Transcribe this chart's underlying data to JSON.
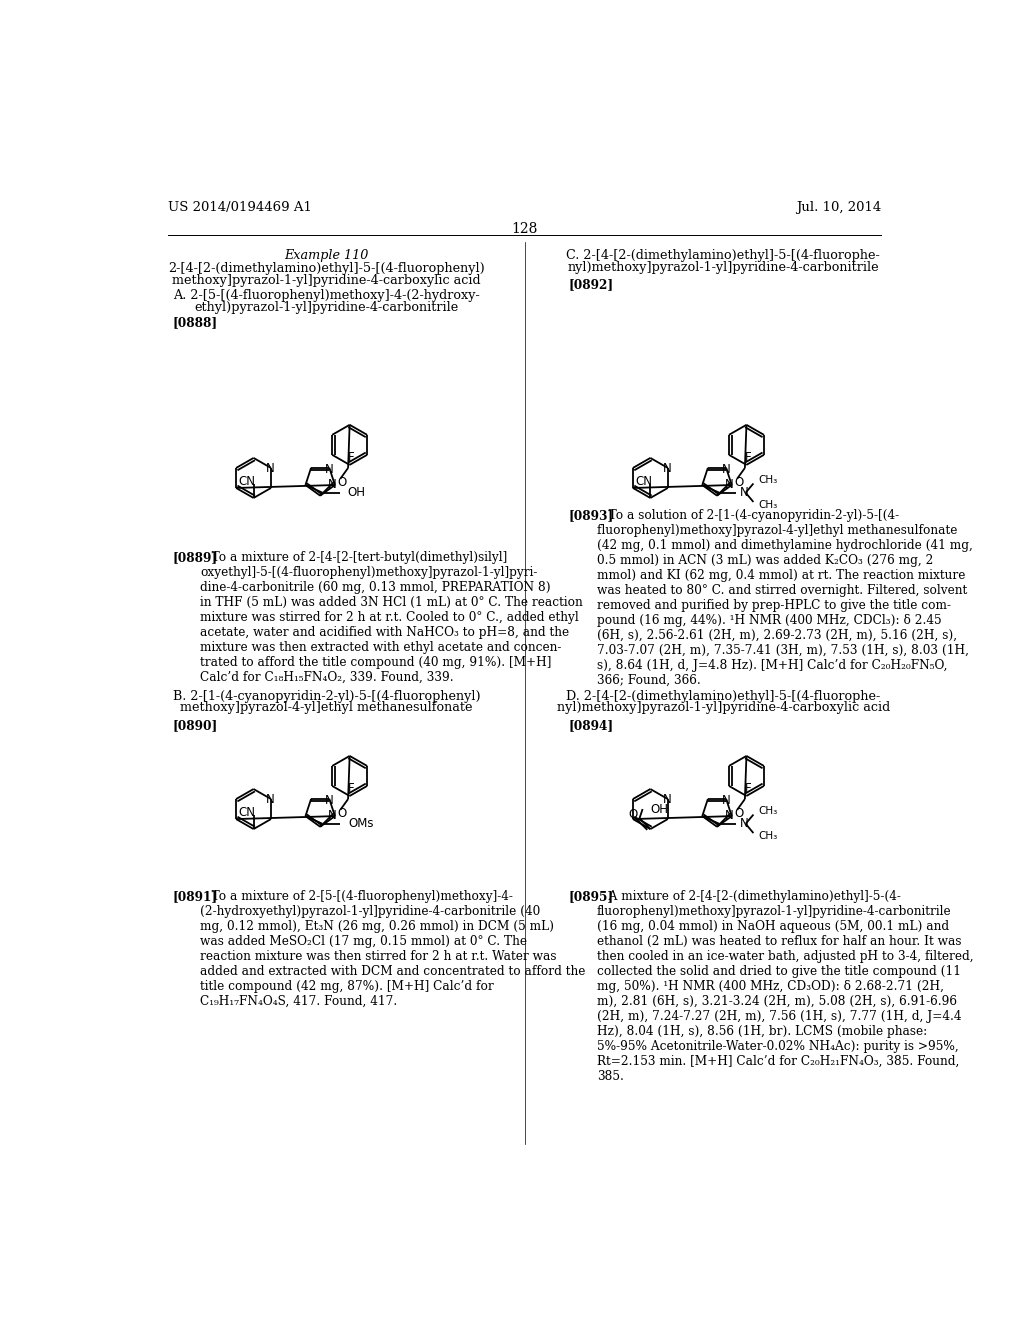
{
  "background_color": "#ffffff",
  "page_number": "128",
  "header_left": "US 2014/0194469 A1",
  "header_right": "Jul. 10, 2014",
  "example_title": "Example 110",
  "example_subtitle_line1": "2-[4-[2-(dimethylamino)ethyl]-5-[(4-fluorophenyl)",
  "example_subtitle_line2": "methoxy]pyrazol-1-yl]pyridine-4-carboxylic acid",
  "sec_a_line1": "A. 2-[5-[(4-fluorophenyl)methoxy]-4-(2-hydroxy-",
  "sec_a_line2": "ethyl)pyrazol-1-yl]pyridine-4-carbonitrile",
  "sec_b_line1": "B. 2-[1-(4-cyanopyridin-2-yl)-5-[(4-fluorophenyl)",
  "sec_b_line2": "methoxy]pyrazol-4-yl]ethyl methanesulfonate",
  "sec_c_line1": "C. 2-[4-[2-(dimethylamino)ethyl]-5-[(4-fluorophe-",
  "sec_c_line2": "nyl)methoxy]pyrazol-1-yl]pyridine-4-carbonitrile",
  "sec_d_line1": "D. 2-[4-[2-(dimethylamino)ethyl]-5-[(4-fluorophe-",
  "sec_d_line2": "nyl)methoxy]pyrazol-1-yl]pyridine-4-carboxylic acid",
  "id_0888": "[0888]",
  "id_0889": "[0889]",
  "id_0890": "[0890]",
  "id_0891": "[0891]",
  "id_0892": "[0892]",
  "id_0893": "[0893]",
  "id_0894": "[0894]",
  "id_0895": "[0895]",
  "para_0889_bold": "[0889]",
  "para_0889_text": "   To a mixture of 2-[4-[2-[tert-butyl(dimethyl)silyl]\noxyethyl]-5-[(4-fluorophenyl)methoxy]pyrazol-1-yl]pyri-\ndine-4-carbonitrile (60 mg, 0.13 mmol, PREPARATION 8)\nin THF (5 mL) was added 3N HCl (1 mL) at 0° C. The reaction\nmixture was stirred for 2 h at r.t. Cooled to 0° C., added ethyl\nacetate, water and acidified with NaHCO₃ to pH=8, and the\nmixture was then extracted with ethyl acetate and concen-\ntrated to afford the title compound (40 mg, 91%). [M+H]\nCalc’d for C₁₈H₁₅FN₄O₂, 339. Found, 339.",
  "para_0891_bold": "[0891]",
  "para_0891_text": "   To a mixture of 2-[5-[(4-fluorophenyl)methoxy]-4-\n(2-hydroxyethyl)pyrazol-1-yl]pyridine-4-carbonitrile (40\nmg, 0.12 mmol), Et₃N (26 mg, 0.26 mmol) in DCM (5 mL)\nwas added MeSO₂Cl (17 mg, 0.15 mmol) at 0° C. The\nreaction mixture was then stirred for 2 h at r.t. Water was\nadded and extracted with DCM and concentrated to afford the\ntitle compound (42 mg, 87%). [M+H] Calc’d for\nC₁₉H₁₇FN₄O₄S, 417. Found, 417.",
  "para_0893_bold": "[0893]",
  "para_0893_text": "   To a solution of 2-[1-(4-cyanopyridin-2-yl)-5-[(4-\nfluorophenyl)methoxy]pyrazol-4-yl]ethyl methanesulfonate\n(42 mg, 0.1 mmol) and dimethylamine hydrochloride (41 mg,\n0.5 mmol) in ACN (3 mL) was added K₂CO₃ (276 mg, 2\nmmol) and KI (62 mg, 0.4 mmol) at rt. The reaction mixture\nwas heated to 80° C. and stirred overnight. Filtered, solvent\nremoved and purified by prep-HPLC to give the title com-\npound (16 mg, 44%). ¹H NMR (400 MHz, CDCl₃): δ 2.45\n(6H, s), 2.56-2.61 (2H, m), 2.69-2.73 (2H, m), 5.16 (2H, s),\n7.03-7.07 (2H, m), 7.35-7.41 (3H, m), 7.53 (1H, s), 8.03 (1H,\ns), 8.64 (1H, d, J=4.8 Hz). [M+H] Calc’d for C₂₀H₂₀FN₅O,\n366; Found, 366.",
  "para_0895_bold": "[0895]",
  "para_0895_text": "   A mixture of 2-[4-[2-(dimethylamino)ethyl]-5-(4-\nfluorophenyl)methoxy]pyrazol-1-yl]pyridine-4-carbonitrile\n(16 mg, 0.04 mmol) in NaOH aqueous (5M, 00.1 mL) and\nethanol (2 mL) was heated to reflux for half an hour. It was\nthen cooled in an ice-water bath, adjusted pH to 3-4, filtered,\ncollected the solid and dried to give the title compound (11\nmg, 50%). ¹H NMR (400 MHz, CD₃OD): δ 2.68-2.71 (2H,\nm), 2.81 (6H, s), 3.21-3.24 (2H, m), 5.08 (2H, s), 6.91-6.96\n(2H, m), 7.24-7.27 (2H, m), 7.56 (1H, s), 7.77 (1H, d, J=4.4\nHz), 8.04 (1H, s), 8.56 (1H, br). LCMS (mobile phase:\n5%-95% Acetonitrile-Water-0.02% NH₄Ac): purity is >95%,\nRt=2.153 min. [M+H] Calc’d for C₂₀H₂₁FN₄O₃, 385. Found,\n385."
}
